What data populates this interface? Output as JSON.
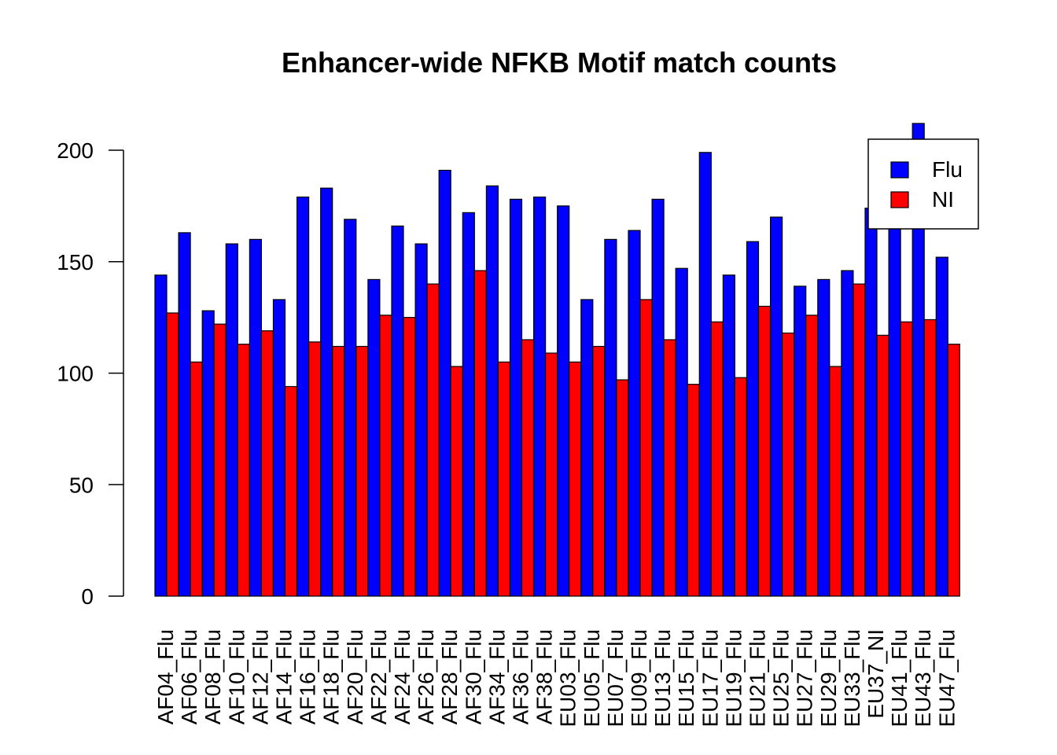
{
  "chart_data": {
    "type": "bar",
    "title": "Enhancer-wide NFKB Motif match counts",
    "xlabel": "",
    "ylabel": "",
    "ylim": [
      0,
      212
    ],
    "yticks": [
      0,
      50,
      100,
      150,
      200
    ],
    "grid": false,
    "legend_position": "top-right",
    "categories": [
      "AF04_Flu",
      "AF06_Flu",
      "AF08_Flu",
      "AF10_Flu",
      "AF12_Flu",
      "AF14_Flu",
      "AF16_Flu",
      "AF18_Flu",
      "AF20_Flu",
      "AF22_Flu",
      "AF24_Flu",
      "AF26_Flu",
      "AF28_Flu",
      "AF30_Flu",
      "AF34_Flu",
      "AF36_Flu",
      "AF38_Flu",
      "EU03_Flu",
      "EU05_Flu",
      "EU07_Flu",
      "EU09_Flu",
      "EU13_Flu",
      "EU15_Flu",
      "EU17_Flu",
      "EU19_Flu",
      "EU21_Flu",
      "EU25_Flu",
      "EU27_Flu",
      "EU29_Flu",
      "EU33_Flu",
      "EU37_NI",
      "EU41_Flu",
      "EU43_Flu",
      "EU47_Flu"
    ],
    "series": [
      {
        "name": "Flu",
        "color": "#0000ff",
        "values": [
          144,
          163,
          128,
          158,
          160,
          133,
          179,
          183,
          169,
          142,
          166,
          158,
          191,
          172,
          184,
          178,
          179,
          175,
          133,
          160,
          164,
          178,
          147,
          199,
          144,
          159,
          170,
          139,
          142,
          146,
          174,
          175,
          212,
          152
        ]
      },
      {
        "name": "NI",
        "color": "#ff0000",
        "values": [
          127,
          105,
          122,
          113,
          119,
          94,
          114,
          112,
          112,
          126,
          125,
          140,
          103,
          146,
          105,
          115,
          109,
          105,
          112,
          97,
          133,
          115,
          95,
          123,
          98,
          130,
          118,
          126,
          103,
          140,
          117,
          123,
          124,
          113
        ]
      }
    ]
  }
}
